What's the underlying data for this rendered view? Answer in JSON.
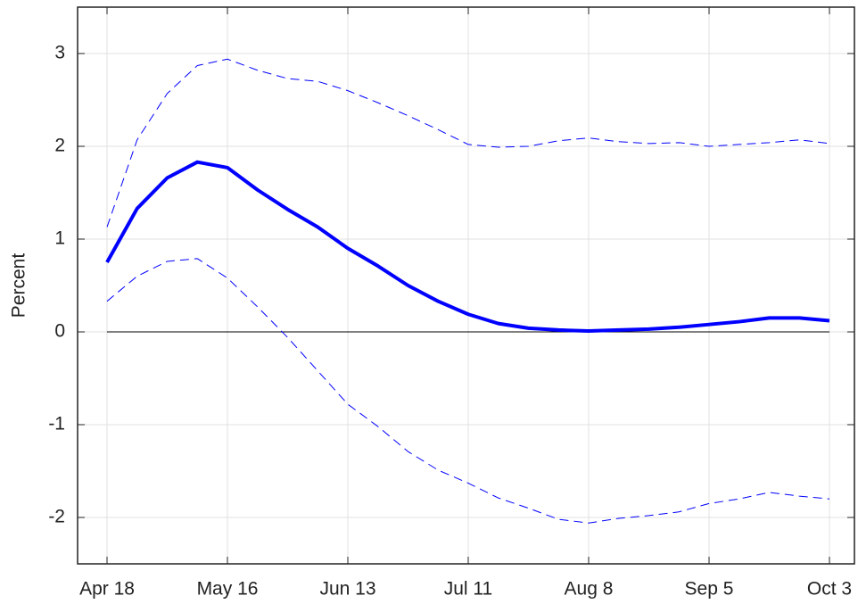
{
  "chart_data": {
    "type": "line",
    "y_label": "Percent",
    "categories": [
      "Apr 18",
      null,
      null,
      null,
      "May 16",
      null,
      null,
      null,
      "Jun 13",
      null,
      null,
      null,
      "Jul 11",
      null,
      null,
      null,
      "Aug 8",
      null,
      null,
      null,
      "Sep 5",
      null,
      null,
      null,
      "Oct 3"
    ],
    "series": [
      {
        "color": "#0000ff",
        "style": "solid",
        "width": 4,
        "values": [
          0.75,
          1.33,
          1.66,
          1.83,
          1.77,
          1.53,
          1.32,
          1.13,
          0.9,
          0.71,
          0.5,
          0.33,
          0.19,
          0.09,
          0.04,
          0.02,
          0.01,
          0.02,
          0.03,
          0.05,
          0.08,
          0.11,
          0.15,
          0.15,
          0.12
        ]
      },
      {
        "color": "#0000ff",
        "style": "dashed",
        "width": 1,
        "values": [
          1.13,
          2.07,
          2.57,
          2.87,
          2.94,
          2.82,
          2.73,
          2.7,
          2.6,
          2.47,
          2.33,
          2.18,
          2.02,
          1.99,
          2.0,
          2.06,
          2.09,
          2.05,
          2.03,
          2.04,
          2.0,
          2.02,
          2.04,
          2.07,
          2.03
        ]
      },
      {
        "color": "#0000ff",
        "style": "dashed",
        "width": 1,
        "values": [
          0.33,
          0.6,
          0.76,
          0.79,
          0.58,
          0.27,
          -0.06,
          -0.42,
          -0.78,
          -1.02,
          -1.29,
          -1.49,
          -1.63,
          -1.79,
          -1.9,
          -2.02,
          -2.06,
          -2.01,
          -1.98,
          -1.94,
          -1.85,
          -1.8,
          -1.73,
          -1.77,
          -1.8
        ]
      }
    ],
    "ylim": [
      -2.5,
      3.5
    ],
    "yticks": [
      -2,
      -1,
      0,
      1,
      2,
      3
    ],
    "grid": true,
    "zero_line": true
  }
}
